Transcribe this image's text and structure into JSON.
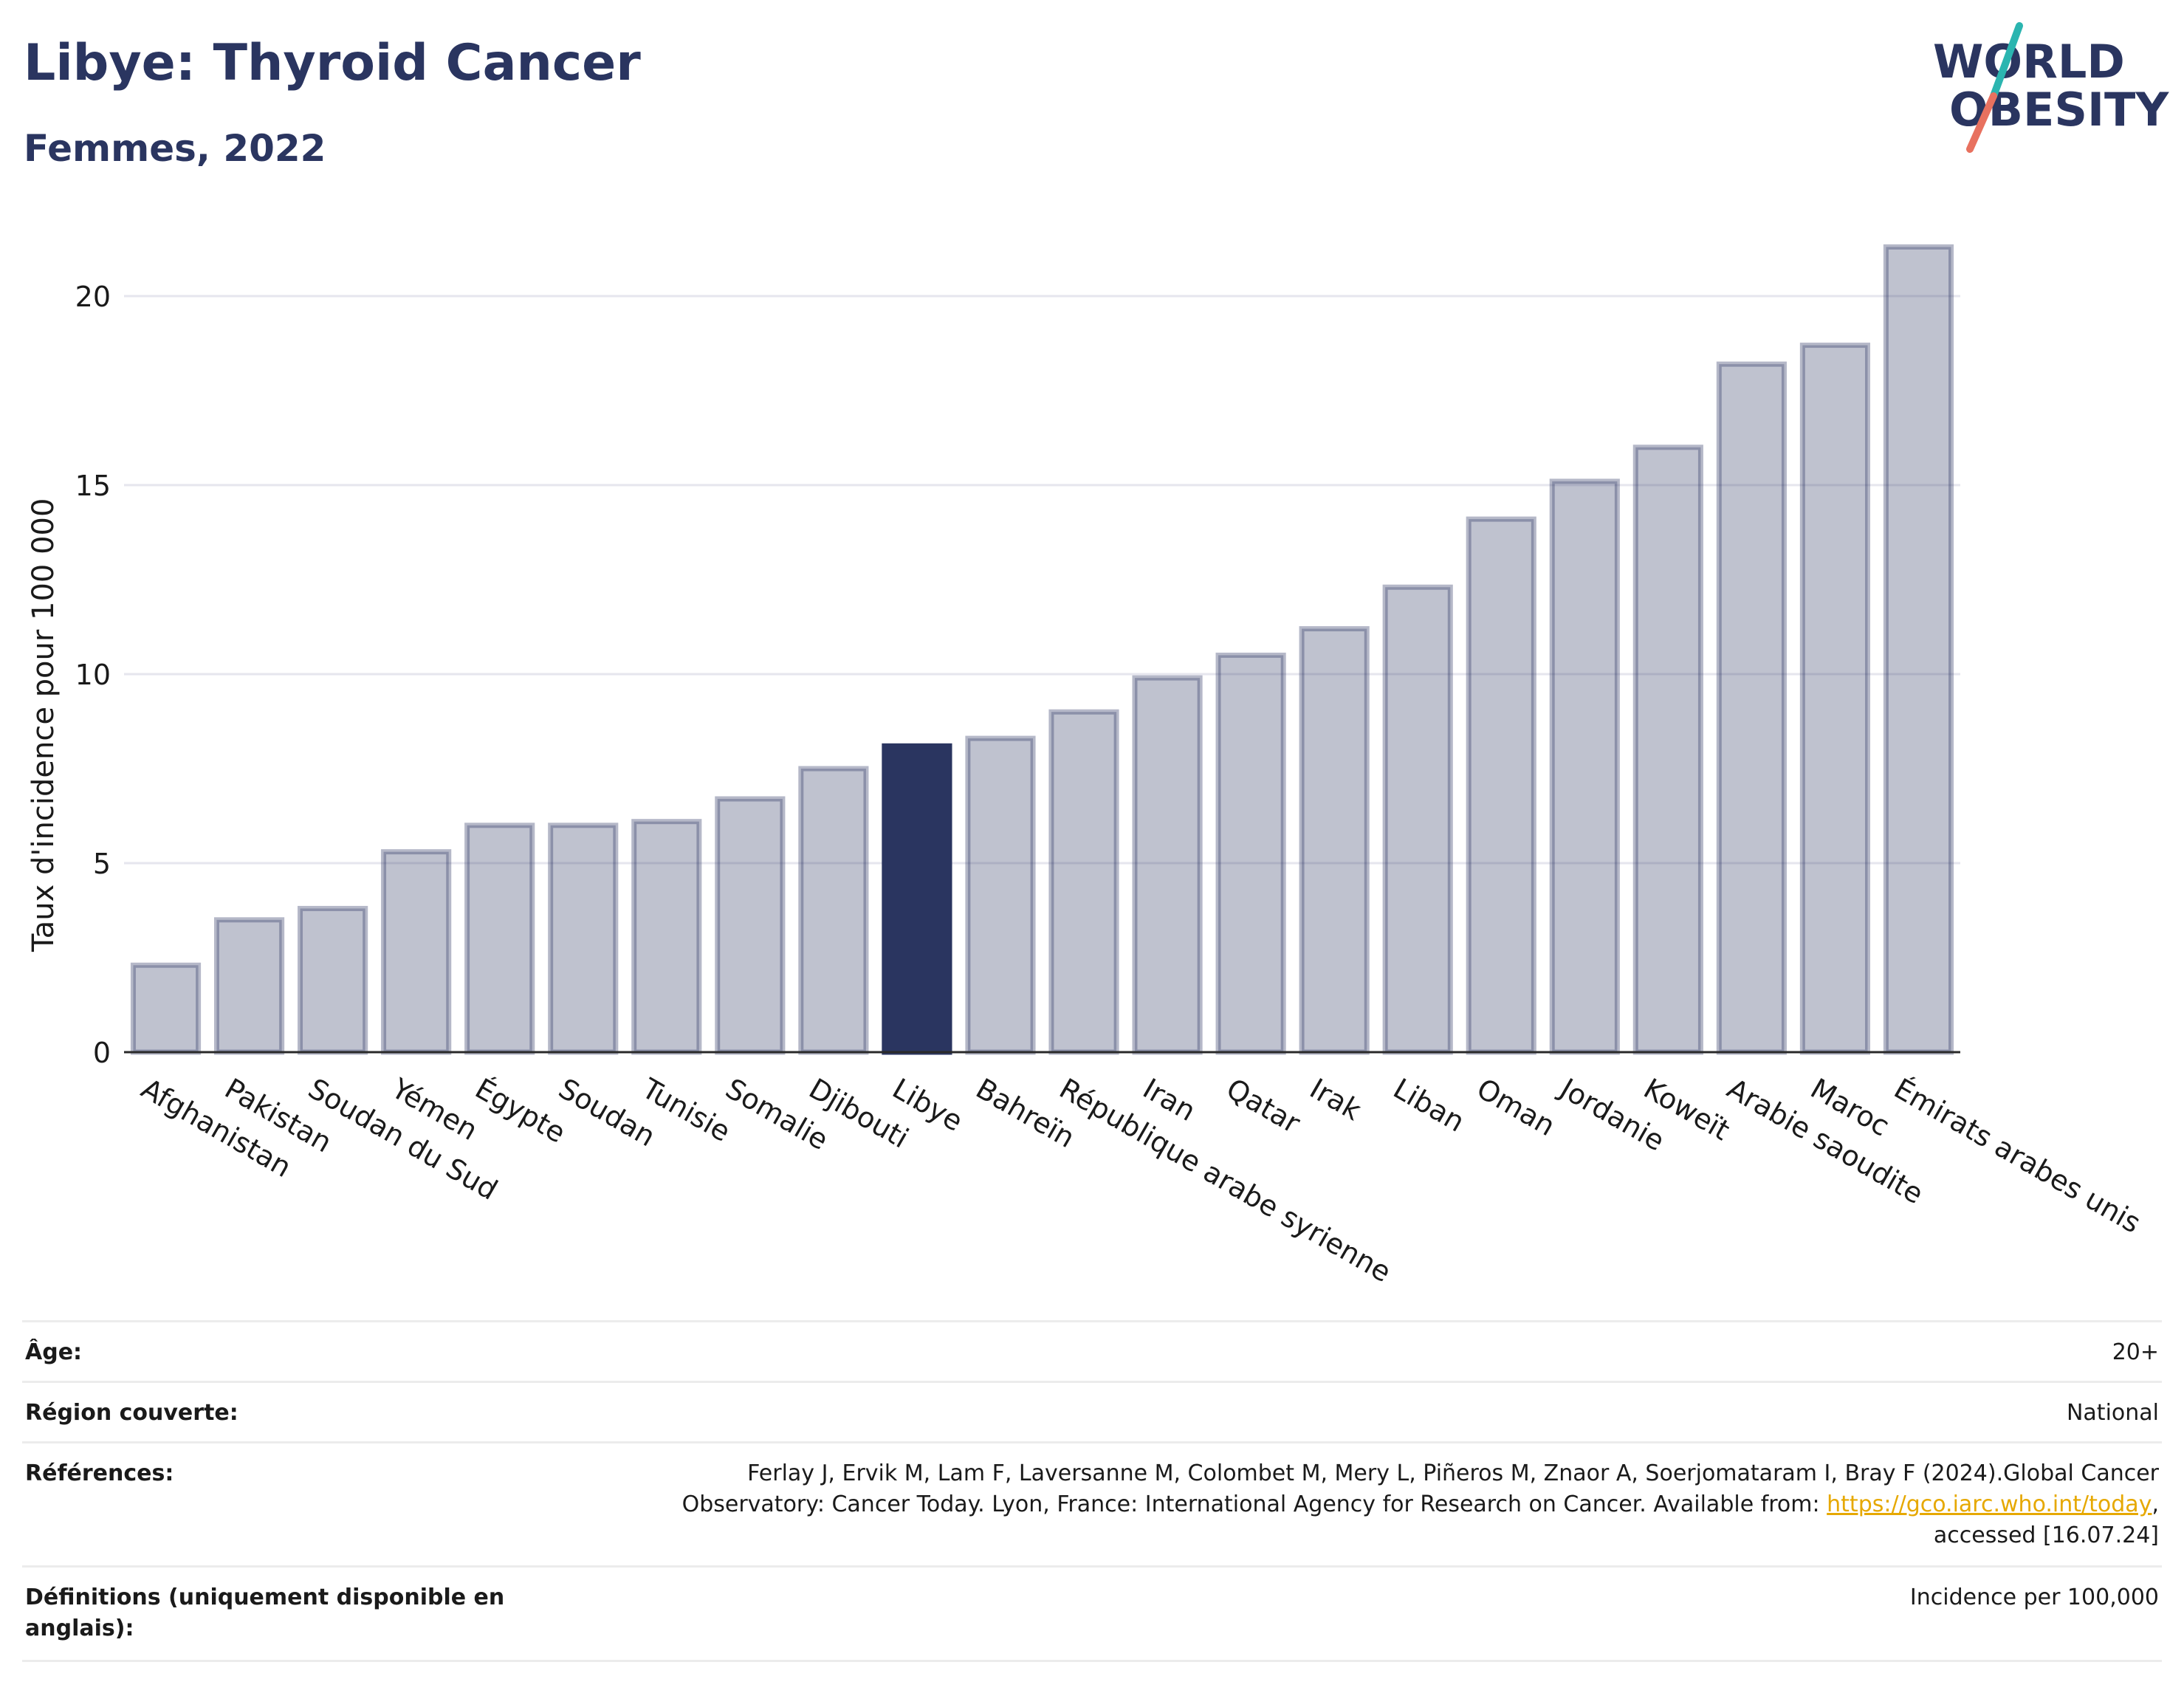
{
  "header": {
    "title": "Libye: Thyroid Cancer",
    "subtitle": "Femmes, 2022"
  },
  "logo": {
    "line1": "WORLD",
    "line2": "OBESITY",
    "icon": "world-obesity-logo"
  },
  "colors": {
    "bar": "#2a3560",
    "highlight": "#2a3560",
    "text": "#2a3560",
    "logo_teal": "#2bb5b0",
    "logo_coral": "#e8715f"
  },
  "chart_data": {
    "type": "bar",
    "title": "Libye: Thyroid Cancer",
    "subtitle": "Femmes, 2022",
    "ylabel": "Taux d'incidence pour 100 000",
    "xlabel": "",
    "ylim": [
      0,
      22
    ],
    "yticks": [
      0,
      5,
      10,
      15,
      20
    ],
    "grid": true,
    "highlight": "Libye",
    "categories": [
      "Afghanistan",
      "Pakistan",
      "Soudan du Sud",
      "Yémen",
      "Égypte",
      "Soudan",
      "Tunisie",
      "Somalie",
      "Djibouti",
      "Libye",
      "Bahreïn",
      "République arabe syrienne",
      "Iran",
      "Qatar",
      "Irak",
      "Liban",
      "Oman",
      "Jordanie",
      "Koweït",
      "Arabie saoudite",
      "Maroc",
      "Émirats arabes unis"
    ],
    "values": [
      2.3,
      3.5,
      3.8,
      5.3,
      6.0,
      6.0,
      6.1,
      6.7,
      7.5,
      8.1,
      8.3,
      9.0,
      9.9,
      10.5,
      11.2,
      12.3,
      14.1,
      15.1,
      16.0,
      18.2,
      18.7,
      21.3
    ]
  },
  "meta": {
    "age_label": "Âge:",
    "age_value": "20+",
    "region_label": "Région couverte:",
    "region_value": "National",
    "refs_label": "Références:",
    "refs_text1": "Ferlay J, Ervik M, Lam F, Laversanne M, Colombet M, Mery L, Piñeros M, Znaor A, Soerjomataram I, Bray F (2024).Global Cancer",
    "refs_text2": "Observatory: Cancer Today. Lyon, France: International Agency for Research on Cancer. Available from: ",
    "refs_link": "https://gco.iarc.who.int/today",
    "refs_text3": ",",
    "refs_text4": "accessed [16.07.24]",
    "defs_label1": "Définitions (uniquement disponible en",
    "defs_label2": "anglais):",
    "defs_value": "Incidence per 100,000"
  }
}
